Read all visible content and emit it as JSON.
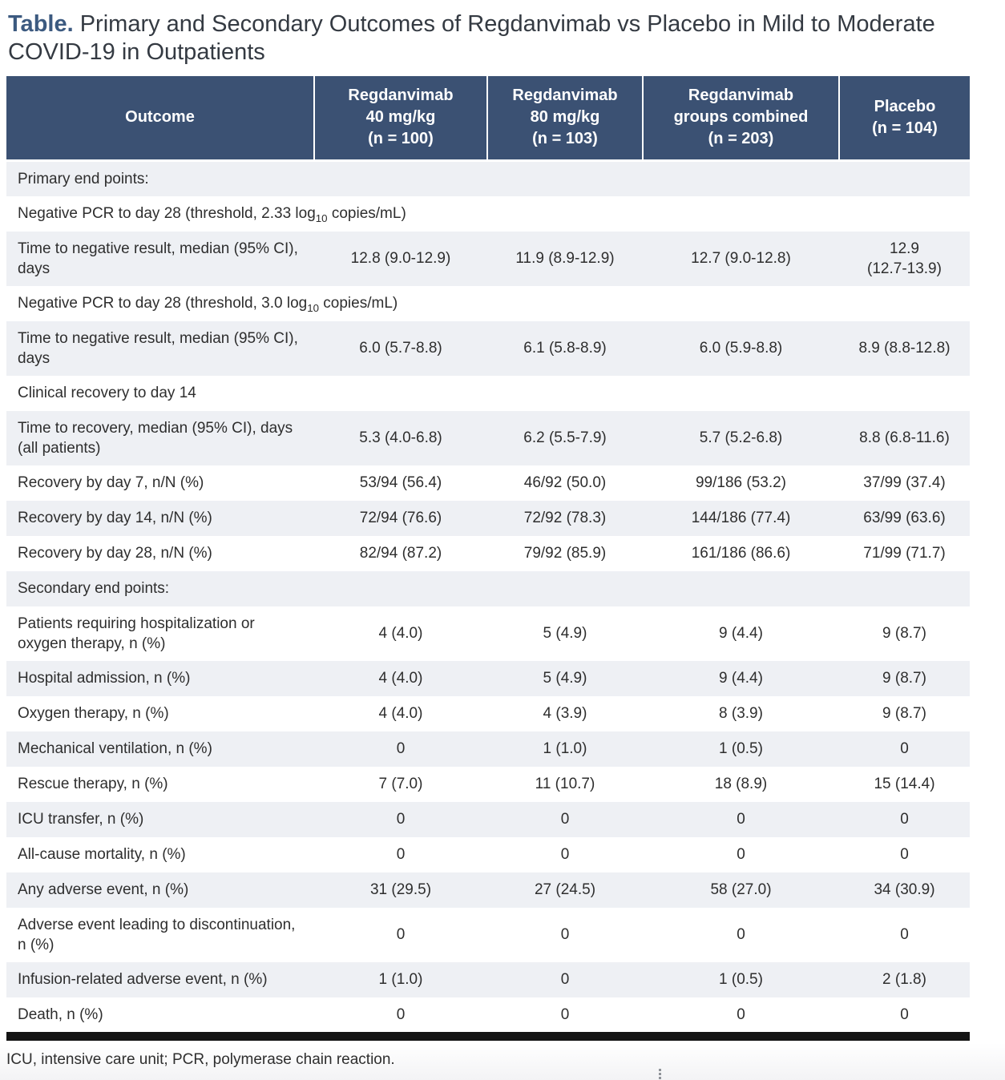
{
  "title": {
    "prefix": "Table.",
    "text": " Primary and Secondary Outcomes of Regdanvimab vs Placebo in Mild to Moderate COVID-19 in Outpatients"
  },
  "colors": {
    "header_bg": "#3b5173",
    "row_alt_bg": "#eef0f4",
    "row_bg": "#ffffff",
    "title_prefix": "#3c5a80",
    "body_text": "#2e2e2e",
    "rule": "#141414"
  },
  "table": {
    "columns": [
      {
        "label": "Outcome"
      },
      {
        "label": "Regdanvimab\n40 mg/kg\n(n = 100)"
      },
      {
        "label": "Regdanvimab\n80 mg/kg\n(n = 103)"
      },
      {
        "label": "Regdanvimab\ngroups combined\n(n = 203)"
      },
      {
        "label": "Placebo\n(n = 104)"
      }
    ],
    "rows": [
      {
        "type": "section",
        "label": "Primary end points:"
      },
      {
        "type": "section",
        "label": [
          "Negative PCR to day 28 (threshold, 2.33 log",
          {
            "sub": "10"
          },
          " copies/mL)"
        ]
      },
      {
        "type": "data",
        "label": "Time to negative result, median (95% CI), days",
        "values": [
          "12.8 (9.0-12.9)",
          "11.9 (8.9-12.9)",
          "12.7 (9.0-12.8)",
          "12.9\n(12.7-13.9)"
        ]
      },
      {
        "type": "section",
        "label": [
          "Negative PCR to day 28 (threshold, 3.0 log",
          {
            "sub": "10"
          },
          " copies/mL)"
        ]
      },
      {
        "type": "data",
        "label": "Time to negative result, median (95% CI), days",
        "values": [
          "6.0 (5.7-8.8)",
          "6.1 (5.8-8.9)",
          "6.0 (5.9-8.8)",
          "8.9 (8.8-12.8)"
        ]
      },
      {
        "type": "section",
        "label": "Clinical recovery to day 14"
      },
      {
        "type": "data",
        "label": "Time to recovery, median (95% CI), days (all patients)",
        "values": [
          "5.3 (4.0-6.8)",
          "6.2 (5.5-7.9)",
          "5.7 (5.2-6.8)",
          "8.8 (6.8-11.6)"
        ]
      },
      {
        "type": "data",
        "label": "Recovery by day 7, n/N (%)",
        "values": [
          "53/94 (56.4)",
          "46/92 (50.0)",
          "99/186 (53.2)",
          "37/99 (37.4)"
        ]
      },
      {
        "type": "data",
        "label": "Recovery by day 14, n/N (%)",
        "values": [
          "72/94 (76.6)",
          "72/92 (78.3)",
          "144/186 (77.4)",
          "63/99 (63.6)"
        ]
      },
      {
        "type": "data",
        "label": "Recovery by day 28, n/N (%)",
        "values": [
          "82/94 (87.2)",
          "79/92 (85.9)",
          "161/186 (86.6)",
          "71/99 (71.7)"
        ]
      },
      {
        "type": "section",
        "label": "Secondary end points:"
      },
      {
        "type": "data",
        "label": "Patients requiring hospitalization or oxygen therapy, n (%)",
        "values": [
          "4 (4.0)",
          "5 (4.9)",
          "9 (4.4)",
          "9 (8.7)"
        ]
      },
      {
        "type": "data",
        "label": "Hospital admission, n (%)",
        "values": [
          "4 (4.0)",
          "5 (4.9)",
          "9 (4.4)",
          "9 (8.7)"
        ]
      },
      {
        "type": "data",
        "label": "Oxygen therapy, n (%)",
        "values": [
          "4 (4.0)",
          "4 (3.9)",
          "8 (3.9)",
          "9 (8.7)"
        ]
      },
      {
        "type": "data",
        "label": "Mechanical ventilation, n (%)",
        "values": [
          "0",
          "1 (1.0)",
          "1 (0.5)",
          "0"
        ]
      },
      {
        "type": "data",
        "label": "Rescue therapy, n (%)",
        "values": [
          "7 (7.0)",
          "11 (10.7)",
          "18 (8.9)",
          "15 (14.4)"
        ]
      },
      {
        "type": "data",
        "label": "ICU transfer, n (%)",
        "values": [
          "0",
          "0",
          "0",
          "0"
        ]
      },
      {
        "type": "data",
        "label": "All-cause mortality, n (%)",
        "values": [
          "0",
          "0",
          "0",
          "0"
        ]
      },
      {
        "type": "data",
        "label": "Any adverse event, n (%)",
        "values": [
          "31 (29.5)",
          "27 (24.5)",
          "58 (27.0)",
          "34 (30.9)"
        ]
      },
      {
        "type": "data",
        "label": "Adverse event leading to discontinuation, n (%)",
        "values": [
          "0",
          "0",
          "0",
          "0"
        ]
      },
      {
        "type": "data",
        "label": "Infusion-related adverse event, n (%)",
        "values": [
          "1 (1.0)",
          "0",
          "1 (0.5)",
          "2 (1.8)"
        ]
      },
      {
        "type": "data",
        "label": "Death, n (%)",
        "values": [
          "0",
          "0",
          "0",
          "0"
        ]
      }
    ]
  },
  "footnote": "ICU, intensive care unit; PCR, polymerase chain reaction."
}
